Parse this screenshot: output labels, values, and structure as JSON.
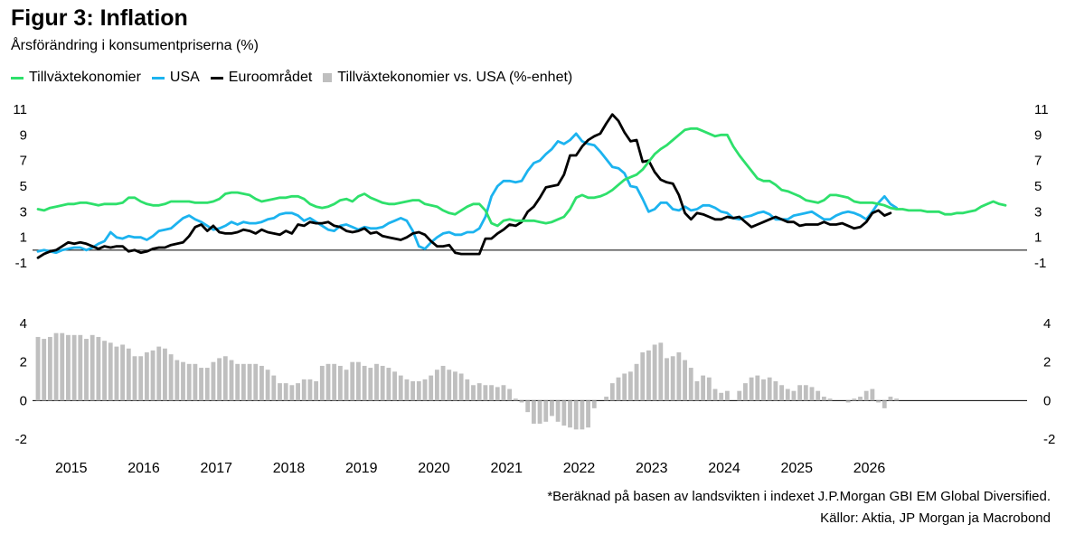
{
  "title": "Figur 3: Inflation",
  "subtitle": "Årsförändring i konsumentpriserna (%)",
  "footnote": "*Beräknad på basen av landsvikten i indexet J.P.Morgan GBI EM Global Diversified.",
  "sources": "Källor: Aktia, JP Morgan ja Macrobond",
  "chart_data": [
    {
      "type": "line",
      "ylim": [
        -1,
        11
      ],
      "yticks": [
        "11",
        "9",
        "7",
        "5",
        "3",
        "1",
        "-1"
      ],
      "x_start": "2015-01",
      "x_end": "2026-02",
      "series": [
        {
          "name": "Tillväxtekonomier",
          "color": "#2ee06b",
          "values": [
            3.2,
            3.1,
            3.3,
            3.4,
            3.5,
            3.6,
            3.6,
            3.7,
            3.7,
            3.6,
            3.5,
            3.6,
            3.6,
            3.6,
            3.7,
            4.1,
            4.1,
            3.8,
            3.6,
            3.5,
            3.5,
            3.6,
            3.8,
            3.8,
            3.8,
            3.8,
            3.7,
            3.7,
            3.7,
            3.8,
            4.0,
            4.4,
            4.5,
            4.5,
            4.4,
            4.3,
            4.0,
            3.8,
            3.9,
            4.0,
            4.1,
            4.1,
            4.2,
            4.2,
            4.0,
            3.6,
            3.4,
            3.3,
            3.4,
            3.6,
            3.9,
            4.0,
            3.8,
            4.2,
            4.4,
            4.1,
            3.9,
            3.7,
            3.6,
            3.6,
            3.7,
            3.8,
            3.9,
            3.9,
            3.6,
            3.5,
            3.4,
            3.1,
            2.9,
            2.8,
            3.1,
            3.4,
            3.6,
            3.6,
            3.1,
            2.1,
            1.9,
            2.3,
            2.4,
            2.3,
            2.3,
            2.3,
            2.3,
            2.2,
            2.1,
            2.2,
            2.4,
            2.6,
            3.2,
            4.1,
            4.3,
            4.1,
            4.1,
            4.2,
            4.4,
            4.7,
            5.1,
            5.5,
            5.7,
            5.9,
            6.3,
            6.9,
            7.5,
            7.9,
            8.2,
            8.6,
            9.0,
            9.4,
            9.5,
            9.5,
            9.3,
            9.1,
            8.9,
            9.0,
            9.0,
            8.1,
            7.4,
            6.8,
            6.2,
            5.6,
            5.4,
            5.4,
            5.1,
            4.7,
            4.6,
            4.4,
            4.2,
            3.9,
            3.8,
            3.7,
            3.9,
            4.3,
            4.3,
            4.2,
            4.1,
            3.8,
            3.7,
            3.7,
            3.7,
            3.6,
            3.5,
            3.3,
            3.2,
            3.2,
            3.1,
            3.1,
            3.1,
            3.0,
            3.0,
            3.0,
            2.8,
            2.8,
            2.9,
            2.9,
            3.0,
            3.1,
            3.4,
            3.6,
            3.8,
            3.6,
            3.5
          ]
        },
        {
          "name": "USA",
          "color": "#1cb3ef",
          "values": [
            -0.1,
            0.0,
            -0.1,
            -0.2,
            0.0,
            0.1,
            0.2,
            0.2,
            0.0,
            0.2,
            0.5,
            0.7,
            1.4,
            1.0,
            0.9,
            1.1,
            1.0,
            1.0,
            0.8,
            1.1,
            1.5,
            1.6,
            1.7,
            2.1,
            2.5,
            2.7,
            2.4,
            2.2,
            1.9,
            1.6,
            1.7,
            1.9,
            2.2,
            2.0,
            2.2,
            2.1,
            2.1,
            2.2,
            2.4,
            2.5,
            2.8,
            2.9,
            2.9,
            2.7,
            2.3,
            2.5,
            2.2,
            1.9,
            1.6,
            1.5,
            1.9,
            2.0,
            1.8,
            1.6,
            1.8,
            1.7,
            1.7,
            1.8,
            2.1,
            2.3,
            2.5,
            2.3,
            1.5,
            0.3,
            0.1,
            0.6,
            1.0,
            1.3,
            1.4,
            1.2,
            1.2,
            1.4,
            1.4,
            1.7,
            2.6,
            4.2,
            5.0,
            5.4,
            5.4,
            5.3,
            5.4,
            6.2,
            6.8,
            7.0,
            7.5,
            7.9,
            8.5,
            8.3,
            8.6,
            9.1,
            8.5,
            8.3,
            8.2,
            7.7,
            7.1,
            6.5,
            6.4,
            6.0,
            5.0,
            4.9,
            4.0,
            3.0,
            3.2,
            3.7,
            3.7,
            3.2,
            3.1,
            3.4,
            3.1,
            3.2,
            3.5,
            3.5,
            3.3,
            3.0,
            2.9,
            2.5,
            2.4,
            2.6,
            2.7,
            2.9,
            3.0,
            2.8,
            2.4,
            2.4,
            2.4,
            2.7,
            2.8,
            2.9,
            3.0,
            2.7,
            2.4,
            2.4,
            2.7,
            2.9,
            3.0,
            2.9,
            2.7,
            2.4,
            3.0,
            3.7,
            4.2,
            3.6,
            3.3
          ]
        },
        {
          "name": "Euroområdet",
          "color": "#000000",
          "values": [
            -0.6,
            -0.3,
            -0.1,
            0.0,
            0.3,
            0.6,
            0.5,
            0.6,
            0.5,
            0.3,
            0.1,
            0.3,
            0.2,
            0.3,
            0.3,
            -0.1,
            0.0,
            -0.2,
            -0.1,
            0.1,
            0.2,
            0.2,
            0.4,
            0.5,
            0.6,
            1.1,
            1.8,
            2.0,
            1.5,
            1.9,
            1.4,
            1.3,
            1.3,
            1.4,
            1.6,
            1.5,
            1.3,
            1.6,
            1.4,
            1.3,
            1.2,
            1.5,
            1.3,
            2.0,
            1.9,
            2.2,
            2.1,
            2.1,
            2.2,
            1.9,
            1.8,
            1.5,
            1.4,
            1.5,
            1.7,
            1.3,
            1.4,
            1.1,
            1.0,
            0.9,
            0.8,
            1.0,
            1.3,
            1.4,
            1.2,
            0.7,
            0.3,
            0.3,
            0.4,
            -0.2,
            -0.3,
            -0.3,
            -0.3,
            -0.3,
            0.9,
            0.9,
            1.3,
            1.6,
            2.0,
            1.9,
            2.2,
            3.0,
            3.4,
            4.1,
            4.9,
            5.0,
            5.1,
            5.9,
            7.4,
            7.4,
            8.1,
            8.6,
            8.9,
            9.1,
            9.9,
            10.6,
            10.1,
            9.2,
            8.5,
            8.6,
            6.9,
            7.0,
            6.1,
            5.5,
            5.3,
            5.2,
            4.3,
            2.9,
            2.4,
            2.9,
            2.8,
            2.6,
            2.4,
            2.4,
            2.6,
            2.5,
            2.6,
            2.2,
            1.8,
            2.0,
            2.2,
            2.4,
            2.6,
            2.4,
            2.2,
            2.2,
            1.9,
            2.0,
            2.0,
            2.0,
            2.2,
            2.0,
            2.0,
            2.1,
            1.9,
            1.7,
            1.8,
            2.2,
            2.9,
            3.1,
            2.7,
            2.9
          ]
        },
        {
          "name": "Tillväxtekonomier vs. USA (%-enhet)",
          "color": "#bfbfbf",
          "values": []
        }
      ]
    },
    {
      "type": "bar",
      "ylim": [
        -2,
        4
      ],
      "yticks": [
        "4",
        "2",
        "0",
        "-2"
      ],
      "x_start": "2015-01",
      "x_end": "2026-02",
      "years": [
        "2015",
        "2016",
        "2017",
        "2018",
        "2019",
        "2020",
        "2021",
        "2022",
        "2023",
        "2024",
        "2025",
        "2026"
      ],
      "series": [
        {
          "name": "Tillväxtekonomier vs. USA (%-enhet)",
          "color": "#bfbfbf",
          "values": [
            3.3,
            3.2,
            3.3,
            3.5,
            3.5,
            3.4,
            3.4,
            3.4,
            3.2,
            3.4,
            3.3,
            3.1,
            3.0,
            2.8,
            2.9,
            2.7,
            2.3,
            2.3,
            2.5,
            2.6,
            2.8,
            2.7,
            2.4,
            2.1,
            2.0,
            1.9,
            1.9,
            1.7,
            1.7,
            2.0,
            2.2,
            2.3,
            2.1,
            1.9,
            1.9,
            1.9,
            1.9,
            1.8,
            1.6,
            1.3,
            0.9,
            0.9,
            0.8,
            0.9,
            1.1,
            1.1,
            1.0,
            1.8,
            1.9,
            1.9,
            1.8,
            1.6,
            2.0,
            2.0,
            1.8,
            1.7,
            1.9,
            1.8,
            1.7,
            1.5,
            1.3,
            1.1,
            1.0,
            1.0,
            1.1,
            1.3,
            1.6,
            1.8,
            1.6,
            1.5,
            1.4,
            1.1,
            0.8,
            0.9,
            0.8,
            0.8,
            0.7,
            0.8,
            0.6,
            0.1,
            -0.1,
            -0.6,
            -1.2,
            -1.2,
            -1.1,
            -0.8,
            -1.1,
            -1.3,
            -1.4,
            -1.5,
            -1.5,
            -1.4,
            -0.4,
            0.0,
            0.2,
            0.9,
            1.2,
            1.4,
            1.5,
            1.9,
            2.5,
            2.6,
            2.9,
            3.0,
            2.2,
            2.3,
            2.5,
            2.1,
            1.7,
            1.0,
            1.3,
            1.2,
            0.6,
            0.4,
            0.5,
            0.0,
            0.5,
            0.9,
            1.2,
            1.3,
            1.1,
            1.2,
            1.0,
            0.8,
            0.6,
            0.5,
            0.8,
            0.8,
            0.7,
            0.5,
            0.2,
            0.1,
            0.0,
            0.0,
            -0.1,
            0.1,
            0.2,
            0.5,
            0.6,
            -0.1,
            -0.4,
            0.2,
            0.1
          ]
        }
      ]
    }
  ]
}
